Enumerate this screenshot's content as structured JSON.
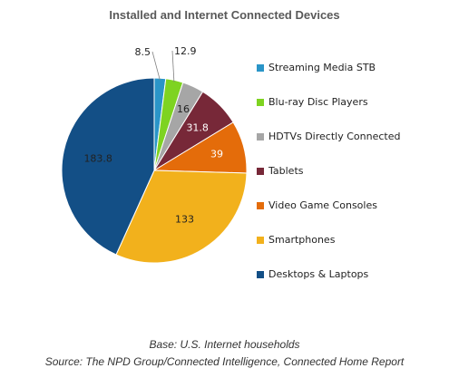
{
  "chart_data": {
    "type": "pie",
    "title": "Installed and Internet Connected Devices",
    "categories": [
      "Streaming Media STB",
      "Blu-ray Disc Players",
      "HDTVs Directly Connected",
      "Tablets",
      "Video Game Consoles",
      "Smartphones",
      "Desktops & Laptops"
    ],
    "values": [
      8.5,
      12.9,
      16,
      31.8,
      39,
      133,
      183.8
    ],
    "data_labels": [
      "8.5",
      "12.9",
      "16",
      "31.8",
      "39",
      "133",
      "183.8"
    ],
    "colors": [
      "#2a95c8",
      "#7ed321",
      "#a6a6a6",
      "#772838",
      "#e46c0a",
      "#f2b11c",
      "#134f86"
    ],
    "legend_placement": "right"
  },
  "notes": {
    "base": "Base: U.S. Internet households",
    "source": "Source: The NPD Group/Connected Intelligence, Connected Home Report"
  }
}
